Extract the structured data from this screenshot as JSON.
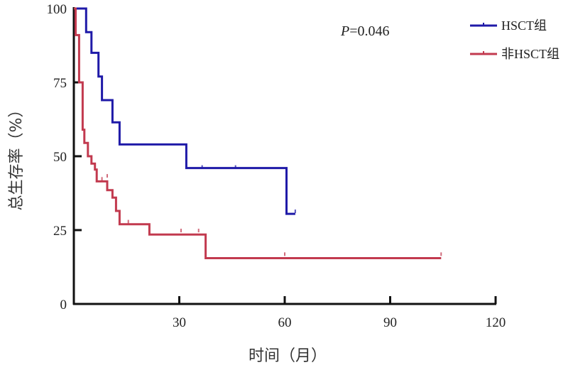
{
  "chart_data": {
    "type": "line",
    "step": true,
    "xlabel": "时间（月）",
    "ylabel": "总生存率（%）",
    "xlim": [
      0,
      120
    ],
    "ylim": [
      0,
      100
    ],
    "xticks": [
      30,
      60,
      90,
      120
    ],
    "yticks": [
      0,
      25,
      50,
      75,
      100
    ],
    "annotation": "P=0.046",
    "legend_position": "top-right",
    "grid": false,
    "series": [
      {
        "name": "HSCT组",
        "color": "#1f1aa8",
        "points": [
          [
            0,
            100
          ],
          [
            3.5,
            100
          ],
          [
            3.5,
            92
          ],
          [
            5,
            92
          ],
          [
            5,
            85
          ],
          [
            7,
            85
          ],
          [
            7,
            77
          ],
          [
            8,
            77
          ],
          [
            8,
            69
          ],
          [
            11,
            69
          ],
          [
            11,
            61.5
          ],
          [
            13,
            61.5
          ],
          [
            13,
            54
          ],
          [
            32,
            54
          ],
          [
            32,
            46
          ],
          [
            60.5,
            46
          ],
          [
            60.5,
            30.5
          ],
          [
            63,
            30.5
          ]
        ],
        "censored": [
          [
            36.5,
            46
          ],
          [
            46,
            46
          ],
          [
            63,
            31
          ]
        ]
      },
      {
        "name": "非HSCT组",
        "color": "#c23a4f",
        "points": [
          [
            0,
            100
          ],
          [
            0.5,
            100
          ],
          [
            0.5,
            91
          ],
          [
            1.5,
            91
          ],
          [
            1.5,
            75
          ],
          [
            2.5,
            75
          ],
          [
            2.5,
            59
          ],
          [
            3,
            59
          ],
          [
            3,
            54.5
          ],
          [
            4,
            54.5
          ],
          [
            4,
            50
          ],
          [
            5,
            50
          ],
          [
            5,
            47.5
          ],
          [
            6,
            47.5
          ],
          [
            6,
            45.5
          ],
          [
            6.5,
            45.5
          ],
          [
            6.5,
            41.5
          ],
          [
            9.5,
            41.5
          ],
          [
            9.5,
            38.5
          ],
          [
            11,
            38.5
          ],
          [
            11,
            36
          ],
          [
            12,
            36
          ],
          [
            12,
            31.5
          ],
          [
            13,
            31.5
          ],
          [
            13,
            27
          ],
          [
            21.5,
            27
          ],
          [
            21.5,
            23.5
          ],
          [
            37.5,
            23.5
          ],
          [
            37.5,
            15.5
          ],
          [
            104.5,
            15.5
          ]
        ],
        "censored": [
          [
            8,
            42
          ],
          [
            9.5,
            43
          ],
          [
            15.5,
            27.5
          ],
          [
            30.5,
            24.5
          ],
          [
            35.5,
            24.5
          ],
          [
            60,
            16.5
          ],
          [
            104.5,
            16.5
          ]
        ]
      }
    ]
  }
}
